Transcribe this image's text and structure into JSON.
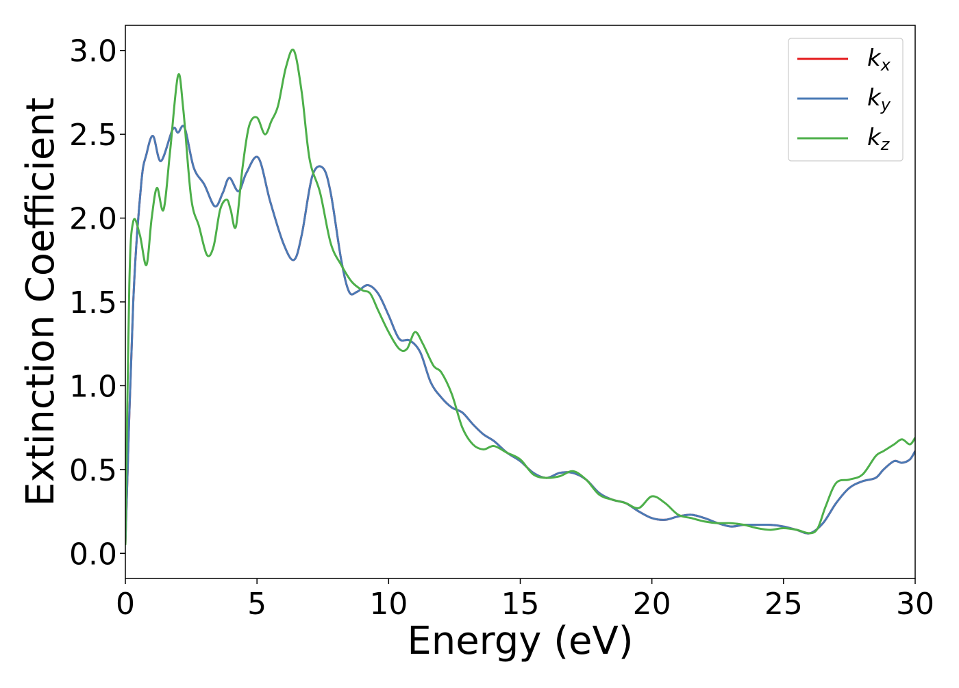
{
  "chart_data": {
    "type": "line",
    "title": "",
    "xlabel": "Energy (eV)",
    "ylabel": "Extinction Coefficient",
    "xlim": [
      0,
      30
    ],
    "ylim": [
      -0.15,
      3.15
    ],
    "xticks": [
      0,
      5,
      10,
      15,
      20,
      25,
      30
    ],
    "xtick_labels": [
      "0",
      "5",
      "10",
      "15",
      "20",
      "25",
      "30"
    ],
    "yticks": [
      0.0,
      0.5,
      1.0,
      1.5,
      2.0,
      2.5,
      3.0
    ],
    "ytick_labels": [
      "0.0",
      "0.5",
      "1.0",
      "1.5",
      "2.0",
      "2.5",
      "3.0"
    ],
    "grid": false,
    "legend_position": "top-right",
    "series": [
      {
        "name": "kx",
        "legend_base": "k",
        "legend_sub": "x",
        "color": "#e41a1c",
        "x": [
          0,
          0.3,
          0.6,
          0.8,
          1.05,
          1.35,
          1.8,
          2.0,
          2.25,
          2.6,
          3.0,
          3.4,
          3.7,
          3.95,
          4.3,
          4.6,
          5.05,
          5.5,
          6.0,
          6.4,
          6.7,
          7.1,
          7.5,
          7.8,
          8.2,
          8.5,
          8.8,
          9.2,
          9.6,
          10.0,
          10.4,
          10.8,
          11.2,
          11.6,
          12.0,
          12.4,
          12.8,
          13.2,
          13.6,
          14.0,
          14.5,
          15.0,
          15.5,
          16.0,
          16.5,
          17.0,
          17.5,
          18.0,
          18.5,
          19.0,
          19.5,
          20.0,
          20.5,
          21.0,
          21.5,
          22.0,
          22.5,
          23.0,
          23.5,
          24.0,
          24.5,
          25.0,
          25.5,
          26.0,
          26.5,
          27.0,
          27.5,
          28.0,
          28.5,
          28.8,
          29.2,
          29.5,
          29.8,
          30.0
        ],
        "y": [
          0.05,
          1.5,
          2.2,
          2.38,
          2.49,
          2.34,
          2.53,
          2.51,
          2.54,
          2.3,
          2.2,
          2.07,
          2.15,
          2.24,
          2.16,
          2.27,
          2.36,
          2.1,
          1.85,
          1.75,
          1.9,
          2.25,
          2.3,
          2.15,
          1.75,
          1.56,
          1.56,
          1.6,
          1.55,
          1.42,
          1.28,
          1.27,
          1.2,
          1.02,
          0.93,
          0.87,
          0.84,
          0.77,
          0.71,
          0.67,
          0.6,
          0.55,
          0.48,
          0.45,
          0.48,
          0.48,
          0.44,
          0.36,
          0.32,
          0.3,
          0.25,
          0.21,
          0.2,
          0.22,
          0.23,
          0.21,
          0.18,
          0.16,
          0.17,
          0.17,
          0.17,
          0.16,
          0.14,
          0.12,
          0.18,
          0.3,
          0.39,
          0.43,
          0.45,
          0.5,
          0.55,
          0.54,
          0.56,
          0.61
        ]
      },
      {
        "name": "ky",
        "legend_base": "k",
        "legend_sub": "y",
        "color": "#4a7ab5",
        "x": [
          0,
          0.3,
          0.6,
          0.8,
          1.05,
          1.35,
          1.8,
          2.0,
          2.25,
          2.6,
          3.0,
          3.4,
          3.7,
          3.95,
          4.3,
          4.6,
          5.05,
          5.5,
          6.0,
          6.4,
          6.7,
          7.1,
          7.5,
          7.8,
          8.2,
          8.5,
          8.8,
          9.2,
          9.6,
          10.0,
          10.4,
          10.8,
          11.2,
          11.6,
          12.0,
          12.4,
          12.8,
          13.2,
          13.6,
          14.0,
          14.5,
          15.0,
          15.5,
          16.0,
          16.5,
          17.0,
          17.5,
          18.0,
          18.5,
          19.0,
          19.5,
          20.0,
          20.5,
          21.0,
          21.5,
          22.0,
          22.5,
          23.0,
          23.5,
          24.0,
          24.5,
          25.0,
          25.5,
          26.0,
          26.5,
          27.0,
          27.5,
          28.0,
          28.5,
          28.8,
          29.2,
          29.5,
          29.8,
          30.0
        ],
        "y": [
          0.05,
          1.5,
          2.2,
          2.38,
          2.49,
          2.34,
          2.53,
          2.51,
          2.54,
          2.3,
          2.2,
          2.07,
          2.15,
          2.24,
          2.16,
          2.27,
          2.36,
          2.1,
          1.85,
          1.75,
          1.9,
          2.25,
          2.3,
          2.15,
          1.75,
          1.56,
          1.56,
          1.6,
          1.55,
          1.42,
          1.28,
          1.27,
          1.2,
          1.02,
          0.93,
          0.87,
          0.84,
          0.77,
          0.71,
          0.67,
          0.6,
          0.55,
          0.48,
          0.45,
          0.48,
          0.48,
          0.44,
          0.36,
          0.32,
          0.3,
          0.25,
          0.21,
          0.2,
          0.22,
          0.23,
          0.21,
          0.18,
          0.16,
          0.17,
          0.17,
          0.17,
          0.16,
          0.14,
          0.12,
          0.18,
          0.3,
          0.39,
          0.43,
          0.45,
          0.5,
          0.55,
          0.54,
          0.56,
          0.61
        ]
      },
      {
        "name": "kz",
        "legend_base": "k",
        "legend_sub": "z",
        "color": "#4daf4a",
        "x": [
          0,
          0.15,
          0.3,
          0.55,
          0.8,
          1.0,
          1.2,
          1.45,
          1.7,
          2.0,
          2.2,
          2.5,
          2.8,
          3.1,
          3.35,
          3.6,
          3.85,
          4.0,
          4.2,
          4.45,
          4.7,
          5.0,
          5.3,
          5.55,
          5.8,
          6.1,
          6.4,
          6.7,
          7.0,
          7.4,
          7.8,
          8.2,
          8.6,
          9.0,
          9.3,
          9.6,
          10.0,
          10.4,
          10.7,
          11.0,
          11.3,
          11.7,
          12.0,
          12.4,
          12.8,
          13.2,
          13.6,
          14.0,
          14.5,
          15.0,
          15.5,
          16.0,
          16.5,
          17.0,
          17.5,
          18.0,
          18.5,
          19.0,
          19.5,
          20.0,
          20.5,
          21.0,
          21.5,
          22.0,
          22.5,
          23.0,
          23.5,
          24.0,
          24.5,
          25.0,
          25.5,
          26.0,
          26.3,
          26.6,
          27.0,
          27.5,
          28.0,
          28.5,
          28.8,
          29.2,
          29.5,
          29.8,
          30.0
        ],
        "y": [
          0.05,
          1.6,
          1.98,
          1.9,
          1.72,
          2.0,
          2.18,
          2.05,
          2.4,
          2.85,
          2.65,
          2.12,
          1.95,
          1.78,
          1.83,
          2.05,
          2.11,
          2.05,
          1.95,
          2.3,
          2.55,
          2.6,
          2.5,
          2.58,
          2.67,
          2.9,
          3.0,
          2.75,
          2.35,
          2.15,
          1.85,
          1.72,
          1.62,
          1.57,
          1.55,
          1.45,
          1.32,
          1.22,
          1.22,
          1.32,
          1.25,
          1.12,
          1.08,
          0.95,
          0.75,
          0.65,
          0.62,
          0.64,
          0.6,
          0.56,
          0.47,
          0.45,
          0.46,
          0.49,
          0.44,
          0.35,
          0.32,
          0.3,
          0.27,
          0.34,
          0.3,
          0.23,
          0.21,
          0.19,
          0.18,
          0.18,
          0.17,
          0.15,
          0.14,
          0.15,
          0.14,
          0.12,
          0.15,
          0.28,
          0.42,
          0.44,
          0.47,
          0.58,
          0.61,
          0.65,
          0.68,
          0.65,
          0.69
        ]
      }
    ]
  }
}
